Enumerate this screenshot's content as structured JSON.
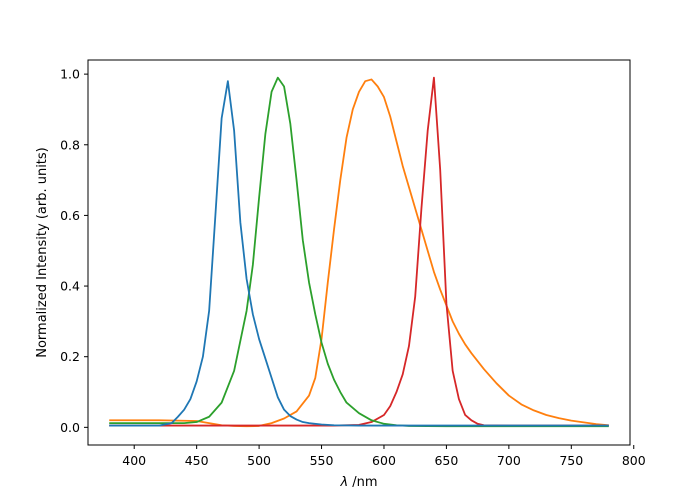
{
  "chart_data": {
    "type": "line",
    "title": "",
    "xlabel_symbol": "λ",
    "xlabel_unit": " /nm",
    "ylabel": "Normalized Intensity (arb. units)",
    "xlim": [
      363,
      797
    ],
    "ylim": [
      -0.05,
      1.04
    ],
    "xticks": [
      400,
      450,
      500,
      550,
      600,
      650,
      700,
      750,
      800
    ],
    "yticks": [
      0.0,
      0.2,
      0.4,
      0.6,
      0.8,
      1.0
    ],
    "xtick_labels": [
      "400",
      "450",
      "500",
      "550",
      "600",
      "650",
      "700",
      "750",
      "800"
    ],
    "ytick_labels": [
      "0.0",
      "0.2",
      "0.4",
      "0.6",
      "0.8",
      "1.0"
    ],
    "grid": false,
    "series": [
      {
        "color": "#ff7f0e",
        "x": [
          380,
          420,
          450,
          460,
          470,
          480,
          490,
          500,
          510,
          520,
          530,
          540,
          545,
          550,
          555,
          560,
          565,
          570,
          575,
          580,
          585,
          590,
          595,
          600,
          605,
          610,
          615,
          620,
          625,
          630,
          635,
          640,
          645,
          650,
          655,
          660,
          665,
          670,
          680,
          690,
          700,
          710,
          720,
          730,
          740,
          750,
          760,
          770,
          780
        ],
        "y": [
          0.02,
          0.02,
          0.018,
          0.012,
          0.006,
          0.004,
          0.003,
          0.004,
          0.012,
          0.025,
          0.045,
          0.09,
          0.14,
          0.25,
          0.41,
          0.56,
          0.7,
          0.82,
          0.9,
          0.95,
          0.98,
          0.985,
          0.965,
          0.935,
          0.88,
          0.81,
          0.74,
          0.68,
          0.62,
          0.56,
          0.5,
          0.44,
          0.39,
          0.345,
          0.3,
          0.265,
          0.235,
          0.21,
          0.165,
          0.125,
          0.09,
          0.065,
          0.048,
          0.035,
          0.026,
          0.019,
          0.014,
          0.009,
          0.006
        ]
      },
      {
        "color": "#d62728",
        "x": [
          380,
          450,
          500,
          560,
          580,
          590,
          600,
          605,
          610,
          615,
          620,
          625,
          630,
          635,
          640,
          645,
          650,
          655,
          660,
          665,
          670,
          675,
          680,
          700,
          780
        ],
        "y": [
          0.005,
          0.005,
          0.005,
          0.005,
          0.007,
          0.015,
          0.035,
          0.06,
          0.1,
          0.15,
          0.23,
          0.37,
          0.62,
          0.84,
          0.99,
          0.73,
          0.35,
          0.16,
          0.08,
          0.035,
          0.02,
          0.01,
          0.006,
          0.005,
          0.005
        ]
      },
      {
        "color": "#2ca02c",
        "x": [
          380,
          420,
          440,
          450,
          460,
          470,
          480,
          490,
          495,
          500,
          505,
          510,
          515,
          520,
          525,
          530,
          535,
          540,
          545,
          550,
          555,
          560,
          565,
          570,
          580,
          590,
          600,
          610,
          620,
          650,
          700,
          780
        ],
        "y": [
          0.012,
          0.012,
          0.012,
          0.015,
          0.03,
          0.07,
          0.16,
          0.33,
          0.46,
          0.65,
          0.83,
          0.95,
          0.99,
          0.965,
          0.86,
          0.7,
          0.53,
          0.41,
          0.32,
          0.24,
          0.18,
          0.135,
          0.1,
          0.07,
          0.04,
          0.02,
          0.01,
          0.006,
          0.004,
          0.003,
          0.003,
          0.003
        ]
      },
      {
        "color": "#1f77b4",
        "x": [
          380,
          420,
          430,
          435,
          440,
          445,
          450,
          455,
          460,
          465,
          470,
          475,
          480,
          485,
          490,
          495,
          500,
          505,
          510,
          515,
          520,
          525,
          530,
          535,
          540,
          550,
          560,
          580,
          620,
          700,
          780
        ],
        "y": [
          0.005,
          0.005,
          0.012,
          0.03,
          0.05,
          0.08,
          0.13,
          0.2,
          0.33,
          0.6,
          0.875,
          0.98,
          0.84,
          0.58,
          0.42,
          0.32,
          0.25,
          0.195,
          0.14,
          0.085,
          0.05,
          0.032,
          0.022,
          0.015,
          0.012,
          0.008,
          0.006,
          0.005,
          0.005,
          0.005,
          0.005
        ]
      }
    ]
  }
}
